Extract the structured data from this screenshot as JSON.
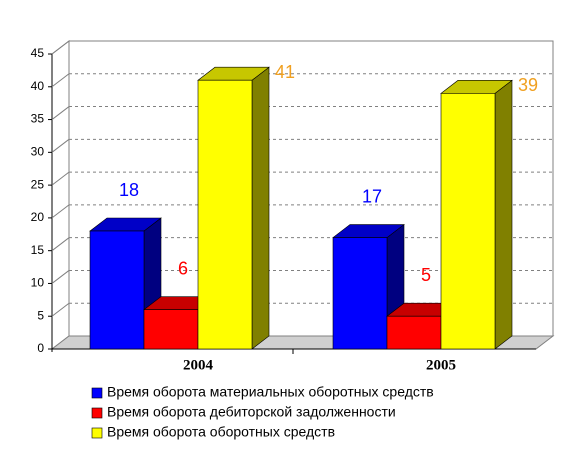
{
  "chart_data": {
    "type": "bar3d",
    "categories": [
      "2004",
      "2005"
    ],
    "series": [
      {
        "name": "Время оборота материальных оборотных средств",
        "color": "#0000ff",
        "label_color": "#0000ff",
        "values": [
          18,
          17
        ]
      },
      {
        "name": "Время оборота дебиторской задолженности",
        "color": "#ff0000",
        "label_color": "#ff0000",
        "values": [
          6,
          5
        ]
      },
      {
        "name": "Время оборота оборотных средств",
        "color": "#ffff00",
        "label_color": "#f0a020",
        "values": [
          41,
          39
        ]
      }
    ],
    "ylim": [
      0,
      45
    ],
    "yticks": [
      0,
      5,
      10,
      15,
      20,
      25,
      30,
      35,
      40,
      45
    ],
    "grid": true
  }
}
